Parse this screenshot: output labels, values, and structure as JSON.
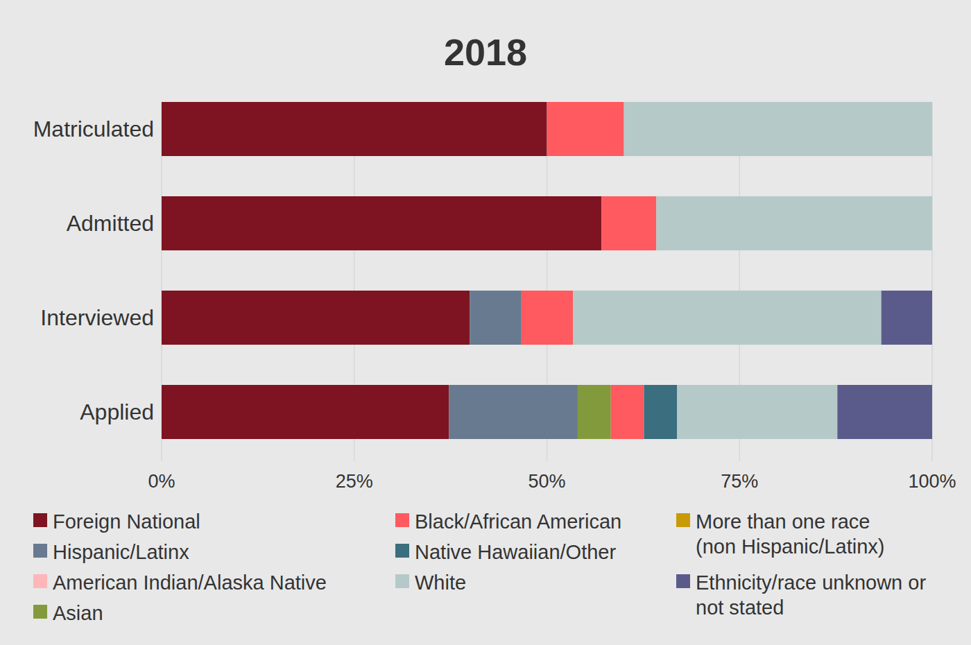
{
  "chart_data": {
    "type": "bar",
    "title": "2018",
    "orientation": "horizontal",
    "stacked": true,
    "grid": true,
    "categories": [
      "Matriculated",
      "Admitted",
      "Interviewed",
      "Applied"
    ],
    "xlim": [
      0,
      100
    ],
    "xticks": [
      {
        "value": 0,
        "label": "0%"
      },
      {
        "value": 25,
        "label": "25%"
      },
      {
        "value": 50,
        "label": "50%"
      },
      {
        "value": 75,
        "label": "75%"
      },
      {
        "value": 100,
        "label": "100%"
      }
    ],
    "series": [
      {
        "name": "Foreign National",
        "color": "#7e1421",
        "values": [
          50,
          57.1,
          40,
          37.3
        ]
      },
      {
        "name": "Hispanic/Latinx",
        "color": "#687a8f",
        "values": [
          0,
          0,
          6.7,
          16.7
        ]
      },
      {
        "name": "American Indian/Alaska Native",
        "color": "#ffb6b9",
        "values": [
          0,
          0,
          0,
          0
        ]
      },
      {
        "name": "Asian",
        "color": "#839a3c",
        "values": [
          0,
          0,
          0,
          4.3
        ]
      },
      {
        "name": "Black/African American",
        "color": "#ff5a5f",
        "values": [
          10,
          7.1,
          6.7,
          4.3
        ]
      },
      {
        "name": "Native Hawaiian/Other",
        "color": "#3b6e7e",
        "values": [
          0,
          0,
          0,
          4.3
        ]
      },
      {
        "name": "White",
        "color": "#b5cac8",
        "values": [
          40,
          35.8,
          40,
          20.8
        ]
      },
      {
        "name": "More than one race (non Hispanic/Latinx)",
        "color": "#c99a08",
        "values": [
          0,
          0,
          0,
          0
        ]
      },
      {
        "name": "Ethnicity/race unknown or not stated",
        "color": "#5b5b8b",
        "values": [
          0,
          0,
          6.6,
          12.3
        ]
      }
    ],
    "legend": "bottom"
  }
}
